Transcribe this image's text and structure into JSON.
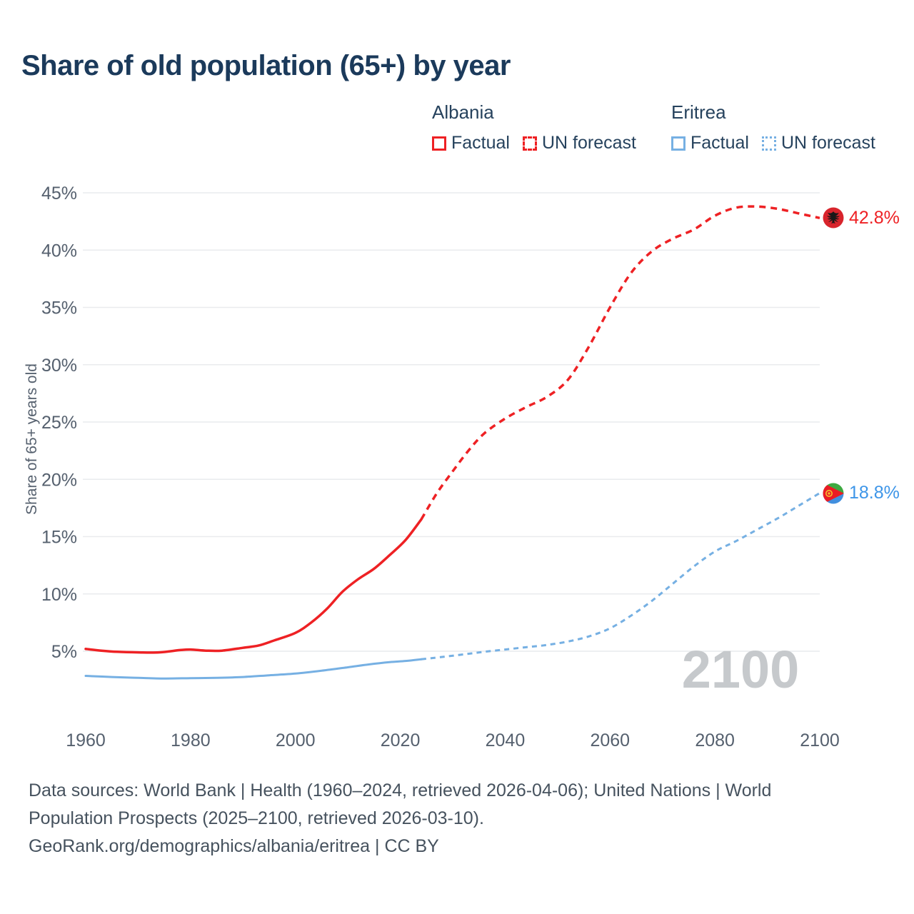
{
  "title": "Share of old population (65+) by year",
  "watermark": "2100",
  "colors": {
    "albania": "#ee2124",
    "eritrea": "#76b0e3",
    "albania_label": "#ee2124",
    "eritrea_label": "#3d95e8",
    "title": "#1b3a5b",
    "legend_text": "#26425d",
    "tick": "#55606e",
    "grid": "#e9ebee",
    "watermark": "#c6c9cc",
    "footer": "#46525e"
  },
  "legend": {
    "groups": [
      {
        "country": "Albania",
        "color": "#ee2124",
        "items": [
          {
            "label": "Factual",
            "style": "solid"
          },
          {
            "label": "UN forecast",
            "style": "dashed"
          }
        ]
      },
      {
        "country": "Eritrea",
        "color": "#76b0e3",
        "items": [
          {
            "label": "Factual",
            "style": "solid"
          },
          {
            "label": "UN forecast",
            "style": "dotted"
          }
        ]
      }
    ]
  },
  "chart_data": {
    "type": "line",
    "title": "Share of old population (65+) by year",
    "xlabel": "",
    "ylabel": "Share of 65+ years old",
    "xlim": [
      1960,
      2100
    ],
    "ylim": [
      5,
      45
    ],
    "x_ticks": [
      1960,
      1980,
      2000,
      2020,
      2040,
      2060,
      2080,
      2100
    ],
    "y_ticks": [
      5,
      10,
      15,
      20,
      25,
      30,
      35,
      40,
      45
    ],
    "grid": "horizontal",
    "legend_position": "top-right",
    "series": [
      {
        "id": "albania-factual",
        "name": "Albania Factual",
        "color": "#ee2124",
        "width": 3.5,
        "dash": "",
        "points": [
          [
            1960,
            5.2
          ],
          [
            1963,
            5.05
          ],
          [
            1966,
            4.95
          ],
          [
            1970,
            4.9
          ],
          [
            1974,
            4.9
          ],
          [
            1978,
            5.1
          ],
          [
            1980,
            5.15
          ],
          [
            1983,
            5.05
          ],
          [
            1986,
            5.05
          ],
          [
            1990,
            5.3
          ],
          [
            1993,
            5.5
          ],
          [
            1996,
            5.95
          ],
          [
            2000,
            6.6
          ],
          [
            2003,
            7.5
          ],
          [
            2006,
            8.7
          ],
          [
            2009,
            10.2
          ],
          [
            2012,
            11.3
          ],
          [
            2015,
            12.2
          ],
          [
            2018,
            13.4
          ],
          [
            2021,
            14.7
          ],
          [
            2024,
            16.5
          ]
        ]
      },
      {
        "id": "albania-forecast",
        "name": "Albania UN forecast",
        "color": "#ee2124",
        "width": 3.5,
        "dash": "9 7",
        "points": [
          [
            2024,
            16.5
          ],
          [
            2027,
            18.8
          ],
          [
            2030,
            20.7
          ],
          [
            2033,
            22.5
          ],
          [
            2036,
            24.0
          ],
          [
            2040,
            25.3
          ],
          [
            2044,
            26.3
          ],
          [
            2048,
            27.2
          ],
          [
            2052,
            28.7
          ],
          [
            2056,
            31.6
          ],
          [
            2060,
            35.0
          ],
          [
            2064,
            38.0
          ],
          [
            2068,
            39.9
          ],
          [
            2072,
            41.0
          ],
          [
            2076,
            41.8
          ],
          [
            2080,
            43.0
          ],
          [
            2084,
            43.7
          ],
          [
            2088,
            43.8
          ],
          [
            2092,
            43.6
          ],
          [
            2096,
            43.2
          ],
          [
            2100,
            42.8
          ]
        ]
      },
      {
        "id": "eritrea-factual",
        "name": "Eritrea Factual",
        "color": "#76b0e3",
        "width": 3,
        "dash": "",
        "points": [
          [
            1960,
            2.85
          ],
          [
            1965,
            2.75
          ],
          [
            1970,
            2.68
          ],
          [
            1975,
            2.62
          ],
          [
            1980,
            2.65
          ],
          [
            1985,
            2.68
          ],
          [
            1990,
            2.75
          ],
          [
            1995,
            2.9
          ],
          [
            2000,
            3.05
          ],
          [
            2005,
            3.3
          ],
          [
            2010,
            3.6
          ],
          [
            2014,
            3.85
          ],
          [
            2018,
            4.05
          ],
          [
            2021,
            4.15
          ],
          [
            2024,
            4.3
          ]
        ]
      },
      {
        "id": "eritrea-forecast",
        "name": "Eritrea UN forecast",
        "color": "#76b0e3",
        "width": 3,
        "dash": "7 6",
        "points": [
          [
            2024,
            4.3
          ],
          [
            2028,
            4.5
          ],
          [
            2032,
            4.72
          ],
          [
            2036,
            4.95
          ],
          [
            2040,
            5.15
          ],
          [
            2044,
            5.35
          ],
          [
            2048,
            5.55
          ],
          [
            2052,
            5.85
          ],
          [
            2056,
            6.3
          ],
          [
            2060,
            7.0
          ],
          [
            2064,
            8.1
          ],
          [
            2068,
            9.4
          ],
          [
            2072,
            10.9
          ],
          [
            2076,
            12.4
          ],
          [
            2080,
            13.7
          ],
          [
            2084,
            14.6
          ],
          [
            2088,
            15.6
          ],
          [
            2092,
            16.6
          ],
          [
            2096,
            17.7
          ],
          [
            2100,
            18.8
          ]
        ]
      }
    ],
    "end_labels": [
      {
        "text": "42.8%",
        "value": 42.8,
        "flag": "albania",
        "color": "#ee2124"
      },
      {
        "text": "18.8%",
        "value": 18.8,
        "flag": "eritrea",
        "color": "#3d95e8"
      }
    ]
  },
  "footer": {
    "lines": [
      "Data sources: World Bank | Health (1960–2024, retrieved 2026-04-06); United Nations | World",
      "Population Prospects (2025–2100, retrieved 2026-03-10).",
      "GeoRank.org/demographics/albania/eritrea | CC BY"
    ]
  }
}
